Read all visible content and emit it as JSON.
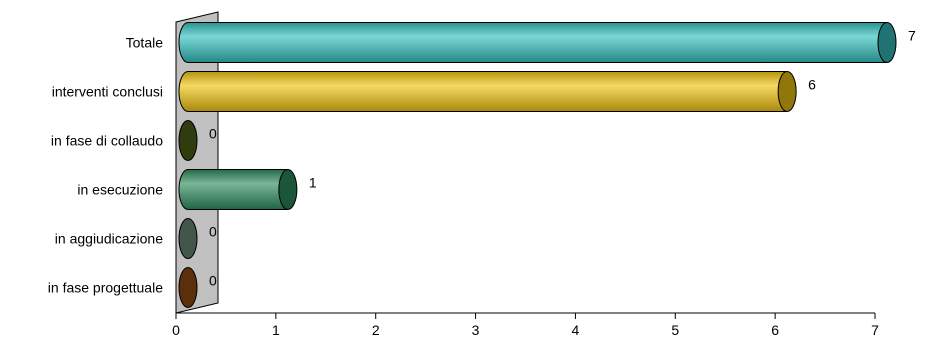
{
  "chart_data": {
    "type": "bar",
    "orientation": "horizontal",
    "categories": [
      "Totale",
      "interventi conclusi",
      "in fase di collaudo",
      "in esecuzione",
      "in aggiudicazione",
      "in fase progettuale"
    ],
    "values": [
      7,
      6,
      0,
      1,
      0,
      0
    ],
    "value_labels": [
      "7",
      "6",
      "0",
      "1",
      "0",
      "0"
    ],
    "colors": [
      "#34c2c0",
      "#f1c40f",
      "#4f6416",
      "#2f8f5f",
      "#6f8f7c",
      "#9a4e12"
    ],
    "xlim": [
      0,
      7
    ],
    "x_ticks": [
      0,
      1,
      2,
      3,
      4,
      5,
      6,
      7
    ],
    "x_tick_labels": [
      "0",
      "1",
      "2",
      "3",
      "4",
      "5",
      "6",
      "7"
    ],
    "grid": false,
    "legend": "none",
    "title": "",
    "xlabel": "",
    "ylabel": ""
  }
}
